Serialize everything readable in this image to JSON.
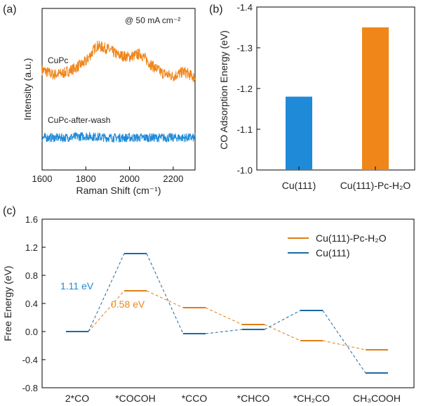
{
  "colors": {
    "orange": "#f08519",
    "blue": "#1f8ad8",
    "cu111_line": "#1b6aa6",
    "pc_line": "#e07d15"
  },
  "chart_data": [
    {
      "panel": "(a)",
      "type": "line",
      "xlabel": "Raman Shift (cm⁻¹)",
      "ylabel": "Intensity (a.u.)",
      "xlim": [
        1600,
        2300
      ],
      "xticks": [
        1600,
        1800,
        2000,
        2200
      ],
      "annotation": "@ 50 mA cm⁻²",
      "series": [
        {
          "name": "CuPc",
          "color": "orange",
          "x": [
            1600,
            1650,
            1700,
            1750,
            1800,
            1850,
            1900,
            1950,
            2000,
            2050,
            2100,
            2150,
            2200,
            2250,
            2300
          ],
          "y": [
            0.62,
            0.59,
            0.6,
            0.63,
            0.67,
            0.77,
            0.75,
            0.71,
            0.7,
            0.72,
            0.65,
            0.6,
            0.58,
            0.61,
            0.57
          ],
          "noise": 0.035
        },
        {
          "name": "CuPc-after-wash",
          "color": "blue",
          "x": [
            1600,
            1700,
            1800,
            1900,
            2000,
            2100,
            2200,
            2300
          ],
          "y": [
            0.2,
            0.2,
            0.21,
            0.2,
            0.2,
            0.2,
            0.2,
            0.2
          ],
          "noise": 0.028
        }
      ]
    },
    {
      "panel": "(b)",
      "type": "bar",
      "ylabel": "CO Adsorption Energy (eV)",
      "ylim": [
        -1.0,
        -1.4
      ],
      "yticks": [
        -1.0,
        -1.1,
        -1.2,
        -1.3,
        -1.4
      ],
      "categories": [
        "Cu(111)",
        "Cu(111)-Pc-H₂O"
      ],
      "values": [
        -1.18,
        -1.35
      ],
      "bar_colors": [
        "blue",
        "orange"
      ]
    },
    {
      "panel": "(c)",
      "type": "line",
      "subtype": "energy-profile",
      "ylabel": "Free Energy (eV)",
      "ylim": [
        -0.8,
        1.6
      ],
      "yticks": [
        -0.8,
        -0.4,
        0.0,
        0.4,
        0.8,
        1.2,
        1.6
      ],
      "categories": [
        "2*CO",
        "*COCOH",
        "*CCO",
        "*CHCO",
        "*CH₂CO",
        "CH₃COOH"
      ],
      "series": [
        {
          "name": "Cu(111)-Pc-H₂O",
          "color": "pc_line",
          "values": [
            0.0,
            0.58,
            0.34,
            0.1,
            -0.13,
            -0.26
          ]
        },
        {
          "name": "Cu(111)",
          "color": "cu111_line",
          "values": [
            0.0,
            1.11,
            -0.03,
            0.03,
            0.3,
            -0.59
          ]
        }
      ],
      "annotations": [
        {
          "text": "1.11 eV",
          "color": "blue"
        },
        {
          "text": "0.58 eV",
          "color": "orange"
        }
      ]
    }
  ]
}
